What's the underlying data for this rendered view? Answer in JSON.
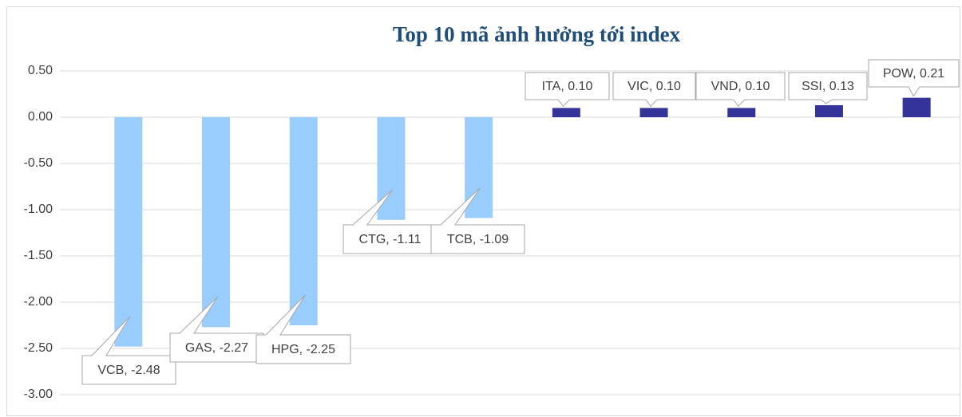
{
  "chart_data": {
    "type": "bar",
    "title": "Top 10 mã ảnh hưởng tới index",
    "values": [
      -2.48,
      -2.27,
      -2.25,
      -1.11,
      -1.09,
      0.1,
      0.1,
      0.1,
      0.13,
      0.21
    ],
    "value_labels": [
      "VCB, -2.48",
      "GAS, -2.27",
      "HPG, -2.25",
      "CTG, -1.11",
      "TCB, -1.09",
      "ITA, 0.10",
      "VIC, 0.10",
      "VND, 0.10",
      "SSI, 0.13",
      "POW, 0.21"
    ],
    "colors": [
      "#99ccff",
      "#99ccff",
      "#99ccff",
      "#99ccff",
      "#99ccff",
      "#333399",
      "#333399",
      "#333399",
      "#333399",
      "#333399"
    ],
    "ylim": [
      -3,
      0.5
    ],
    "yticks": [
      {
        "value": -3,
        "label": "-3.00"
      },
      {
        "value": -2.5,
        "label": "-2.50"
      },
      {
        "value": -2,
        "label": "-2.00"
      },
      {
        "value": -1.5,
        "label": "-1.50"
      },
      {
        "value": -1,
        "label": "-1.00"
      },
      {
        "value": -0.5,
        "label": "-0.50"
      },
      {
        "value": 0,
        "label": "0.00"
      },
      {
        "value": 0.5,
        "label": "0.50"
      }
    ],
    "grid": true
  }
}
